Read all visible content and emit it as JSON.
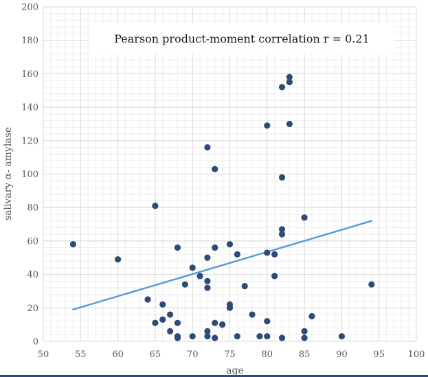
{
  "chart_data": {
    "type": "scatter",
    "title": "",
    "xlabel": "age",
    "ylabel": "salivary α- amylase",
    "annotation": "Pearson product-moment correlation r = 0.21",
    "xlim": [
      50,
      100
    ],
    "ylim": [
      0,
      200
    ],
    "x_ticks": [
      50,
      55,
      60,
      65,
      70,
      75,
      80,
      85,
      90,
      95,
      100
    ],
    "y_ticks": [
      0,
      20,
      40,
      60,
      80,
      100,
      120,
      140,
      160,
      180,
      200
    ],
    "x_minor_step": 1,
    "y_minor_step": 4,
    "grid": true,
    "colors": {
      "points": "#2e4a7a",
      "trendline": "#5b9bd5",
      "grid_major": "#d9d9d9",
      "grid_minor": "#eeeeee"
    },
    "trendline": {
      "x": [
        54,
        94
      ],
      "y": [
        19,
        72
      ]
    },
    "points": [
      {
        "x": 54,
        "y": 58
      },
      {
        "x": 60,
        "y": 49
      },
      {
        "x": 64,
        "y": 25
      },
      {
        "x": 65,
        "y": 81
      },
      {
        "x": 65,
        "y": 11
      },
      {
        "x": 66,
        "y": 22
      },
      {
        "x": 66,
        "y": 13
      },
      {
        "x": 67,
        "y": 16
      },
      {
        "x": 67,
        "y": 6
      },
      {
        "x": 68,
        "y": 56
      },
      {
        "x": 68,
        "y": 11
      },
      {
        "x": 68,
        "y": 3
      },
      {
        "x": 68,
        "y": 2
      },
      {
        "x": 69,
        "y": 34
      },
      {
        "x": 70,
        "y": 44
      },
      {
        "x": 70,
        "y": 3
      },
      {
        "x": 71,
        "y": 39
      },
      {
        "x": 72,
        "y": 116
      },
      {
        "x": 72,
        "y": 50
      },
      {
        "x": 72,
        "y": 36
      },
      {
        "x": 72,
        "y": 32
      },
      {
        "x": 72,
        "y": 6
      },
      {
        "x": 72,
        "y": 3
      },
      {
        "x": 73,
        "y": 103
      },
      {
        "x": 73,
        "y": 56
      },
      {
        "x": 73,
        "y": 11
      },
      {
        "x": 73,
        "y": 2
      },
      {
        "x": 74,
        "y": 10
      },
      {
        "x": 75,
        "y": 58
      },
      {
        "x": 75,
        "y": 22
      },
      {
        "x": 75,
        "y": 20
      },
      {
        "x": 76,
        "y": 52
      },
      {
        "x": 76,
        "y": 3
      },
      {
        "x": 77,
        "y": 33
      },
      {
        "x": 78,
        "y": 16
      },
      {
        "x": 79,
        "y": 3
      },
      {
        "x": 80,
        "y": 129
      },
      {
        "x": 80,
        "y": 53
      },
      {
        "x": 80,
        "y": 12
      },
      {
        "x": 80,
        "y": 3
      },
      {
        "x": 81,
        "y": 52
      },
      {
        "x": 81,
        "y": 39
      },
      {
        "x": 82,
        "y": 152
      },
      {
        "x": 82,
        "y": 98
      },
      {
        "x": 82,
        "y": 67
      },
      {
        "x": 82,
        "y": 64
      },
      {
        "x": 82,
        "y": 2
      },
      {
        "x": 83,
        "y": 158
      },
      {
        "x": 83,
        "y": 155
      },
      {
        "x": 83,
        "y": 130
      },
      {
        "x": 85,
        "y": 74
      },
      {
        "x": 85,
        "y": 6
      },
      {
        "x": 85,
        "y": 2
      },
      {
        "x": 86,
        "y": 15
      },
      {
        "x": 90,
        "y": 3
      },
      {
        "x": 94,
        "y": 34
      }
    ]
  }
}
